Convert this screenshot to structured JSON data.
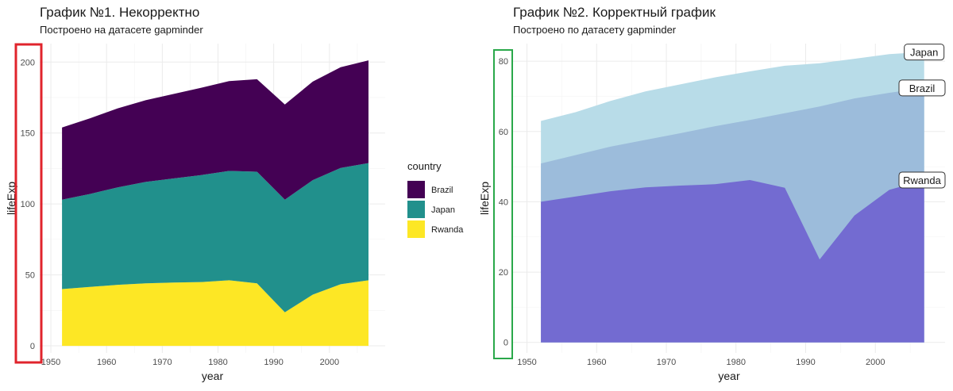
{
  "charts": [
    {
      "title": "График №1. Некорректно",
      "subtitle": "Построено на датасете gapminder",
      "highlight_color": "#e0242c"
    },
    {
      "title": "График №2. Корректный график",
      "subtitle": "Построено по датасету gapminder",
      "highlight_color": "#2aa84a"
    }
  ],
  "chart_data": [
    {
      "type": "area",
      "stacked": true,
      "title": "График №1. Некорректно",
      "subtitle": "Построено на датасете gapminder",
      "xlabel": "year",
      "ylabel": "lifeExp",
      "x": [
        1952,
        1957,
        1962,
        1967,
        1972,
        1977,
        1982,
        1987,
        1992,
        1997,
        2002,
        2007
      ],
      "xlim": [
        1948,
        2010
      ],
      "ylim": [
        -5,
        213
      ],
      "xticks": [
        1950,
        1960,
        1970,
        1980,
        1990,
        2000
      ],
      "yticks": [
        0,
        50,
        100,
        150,
        200
      ],
      "grid": true,
      "legend": {
        "title": "country",
        "position": "right"
      },
      "series": [
        {
          "name": "Rwanda",
          "color": "#fde725",
          "values": [
            40.0,
            41.5,
            43.0,
            44.1,
            44.6,
            45.0,
            46.2,
            44.0,
            23.6,
            36.1,
            43.4,
            46.2
          ]
        },
        {
          "name": "Japan",
          "color": "#21908c",
          "values": [
            63.0,
            65.5,
            68.7,
            71.4,
            73.4,
            75.4,
            77.1,
            78.7,
            79.4,
            80.7,
            82.0,
            82.6
          ]
        },
        {
          "name": "Brazil",
          "color": "#440154",
          "values": [
            50.9,
            53.3,
            55.7,
            57.6,
            59.5,
            61.5,
            63.3,
            65.2,
            67.1,
            69.4,
            71.0,
            72.4
          ]
        }
      ],
      "legend_order": [
        "Brazil",
        "Japan",
        "Rwanda"
      ]
    },
    {
      "type": "area",
      "stacked": false,
      "title": "График №2. Корректный график",
      "subtitle": "Построено по датасету gapminder",
      "xlabel": "year",
      "ylabel": "lifeExp",
      "x": [
        1952,
        1957,
        1962,
        1967,
        1972,
        1977,
        1982,
        1987,
        1992,
        1997,
        2002,
        2007
      ],
      "xlim": [
        1948,
        2010
      ],
      "ylim": [
        -3,
        85
      ],
      "xticks": [
        1950,
        1960,
        1970,
        1980,
        1990,
        2000
      ],
      "yticks": [
        0,
        20,
        40,
        60,
        80
      ],
      "grid": true,
      "series": [
        {
          "name": "Japan",
          "color": "#b8dce8",
          "values": [
            63.0,
            65.5,
            68.7,
            71.4,
            73.4,
            75.4,
            77.1,
            78.7,
            79.4,
            80.7,
            82.0,
            82.6
          ]
        },
        {
          "name": "Brazil",
          "color": "#9cbcdb",
          "values": [
            50.9,
            53.3,
            55.7,
            57.6,
            59.5,
            61.5,
            63.3,
            65.2,
            67.1,
            69.4,
            71.0,
            72.4
          ]
        },
        {
          "name": "Rwanda",
          "color": "#736bd1",
          "values": [
            40.0,
            41.5,
            43.0,
            44.1,
            44.6,
            45.0,
            46.2,
            44.0,
            23.6,
            36.1,
            43.4,
            46.2
          ]
        }
      ],
      "direct_labels": [
        "Japan",
        "Brazil",
        "Rwanda"
      ]
    }
  ]
}
